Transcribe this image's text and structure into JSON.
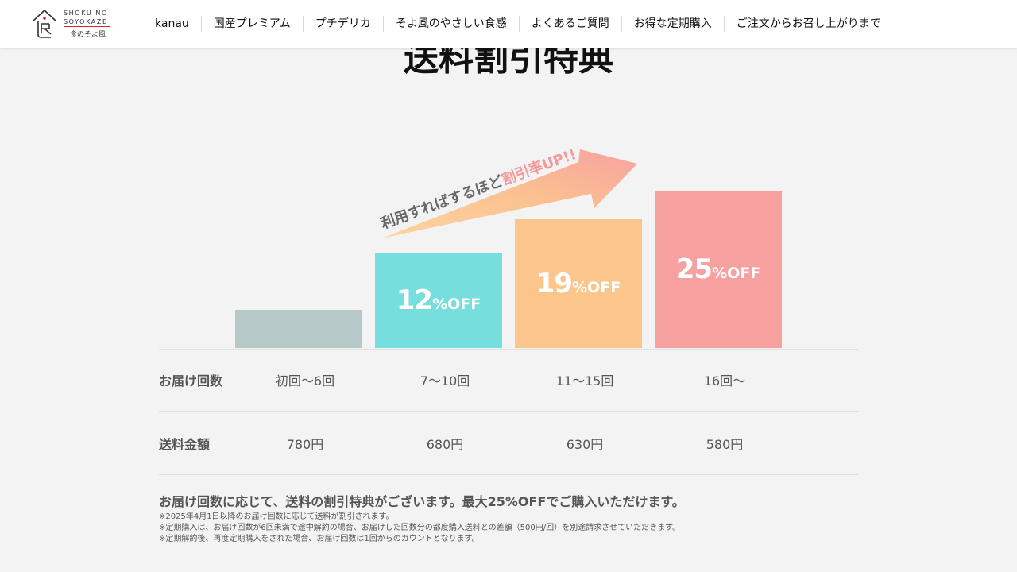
{
  "logo": {
    "en": "SHOKU NO\nSOYOKAZE",
    "ja": "食のそよ風",
    "accent": "#d9232e"
  },
  "nav": {
    "items": [
      {
        "label": "kanau"
      },
      {
        "label": "国産プレミアム"
      },
      {
        "label": "プチデリカ"
      },
      {
        "label": "そよ風のやさしい食感"
      },
      {
        "label": "よくあるご質問"
      },
      {
        "label": "お得な定期購入"
      },
      {
        "label": "ご注文からお召し上がりまで"
      }
    ]
  },
  "page": {
    "title": "送料割引特典"
  },
  "chart": {
    "arrow_text_gray": "利用すればするほど",
    "arrow_text_pink": "割引率UP!!",
    "bars": [
      {
        "value": 0,
        "num": "",
        "pct": "",
        "off": "",
        "color": "#b6c9c8"
      },
      {
        "value": 12,
        "num": "12",
        "pct": "%",
        "off": "OFF",
        "color": "#77dede"
      },
      {
        "value": 19,
        "num": "19",
        "pct": "%",
        "off": "OFF",
        "color": "#fbc68c"
      },
      {
        "value": 25,
        "num": "25",
        "pct": "%",
        "off": "OFF",
        "color": "#f6a09f"
      }
    ]
  },
  "table": {
    "rows": [
      {
        "head": "お届け回数",
        "cells": [
          "初回〜6回",
          "7〜10回",
          "11〜15回",
          "16回〜"
        ]
      },
      {
        "head": "送料金額",
        "cells": [
          "780円",
          "680円",
          "630円",
          "580円"
        ]
      }
    ]
  },
  "notes": {
    "main": "お届け回数に応じて、送料の割引特典がございます。最大25%OFFでご購入いただけます。",
    "lines": [
      "※2025年4月1日以降のお届け回数に応じて送料が割引されます。",
      "※定期購入は、お届け回数が6回未満で途中解約の場合、お届けした回数分の都度購入送料との差額（500円/回）を別途請求させていただきます。",
      "※定期解約後、再度定期購入をされた場合、お届け回数は1回からのカウントとなります。"
    ]
  }
}
